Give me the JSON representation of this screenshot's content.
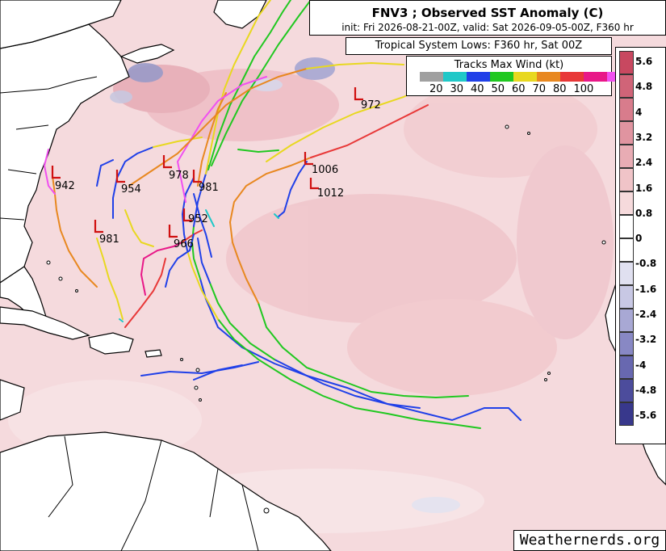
{
  "title": "FNV3 ; Observed SST Anomaly (C)",
  "subtitle": "init: Fri 2026-08-21-00Z, valid: Sat 2026-09-05-00Z, F360 hr",
  "lows_label": "Tropical System Lows: F360 hr, Sat 00Z",
  "legend": {
    "title": "Tracks Max Wind (kt)",
    "swatches": [
      "#a0a0a0",
      "#20c8c8",
      "#2040e8",
      "#20c820",
      "#e8d820",
      "#e88820",
      "#e83838",
      "#e81888",
      "#f050f0"
    ],
    "labels": [
      "20",
      "30",
      "40",
      "50",
      "60",
      "70",
      "80",
      "100"
    ]
  },
  "colorbar": {
    "labels": [
      "5.6",
      "4.8",
      "4",
      "3.2",
      "2.4",
      "1.6",
      "0.8",
      "0",
      "-0.8",
      "-1.6",
      "-2.4",
      "-3.2",
      "-4",
      "-4.8",
      "-5.6"
    ],
    "colors": [
      "#c84860",
      "#d06478",
      "#d87c8c",
      "#e094a0",
      "#e8acb4",
      "#f0c4c8",
      "#f6dadc",
      "#ffffff",
      "#ffffff",
      "#e0e0f0",
      "#c8c8e4",
      "#a8a8d4",
      "#8888c4",
      "#6868b0",
      "#4c4c9c",
      "#38388c"
    ]
  },
  "pressures": [
    "942",
    "954",
    "978",
    "981",
    "952",
    "966",
    "981",
    "1006",
    "1012",
    "972"
  ],
  "credit": "Weathernerds.org"
}
